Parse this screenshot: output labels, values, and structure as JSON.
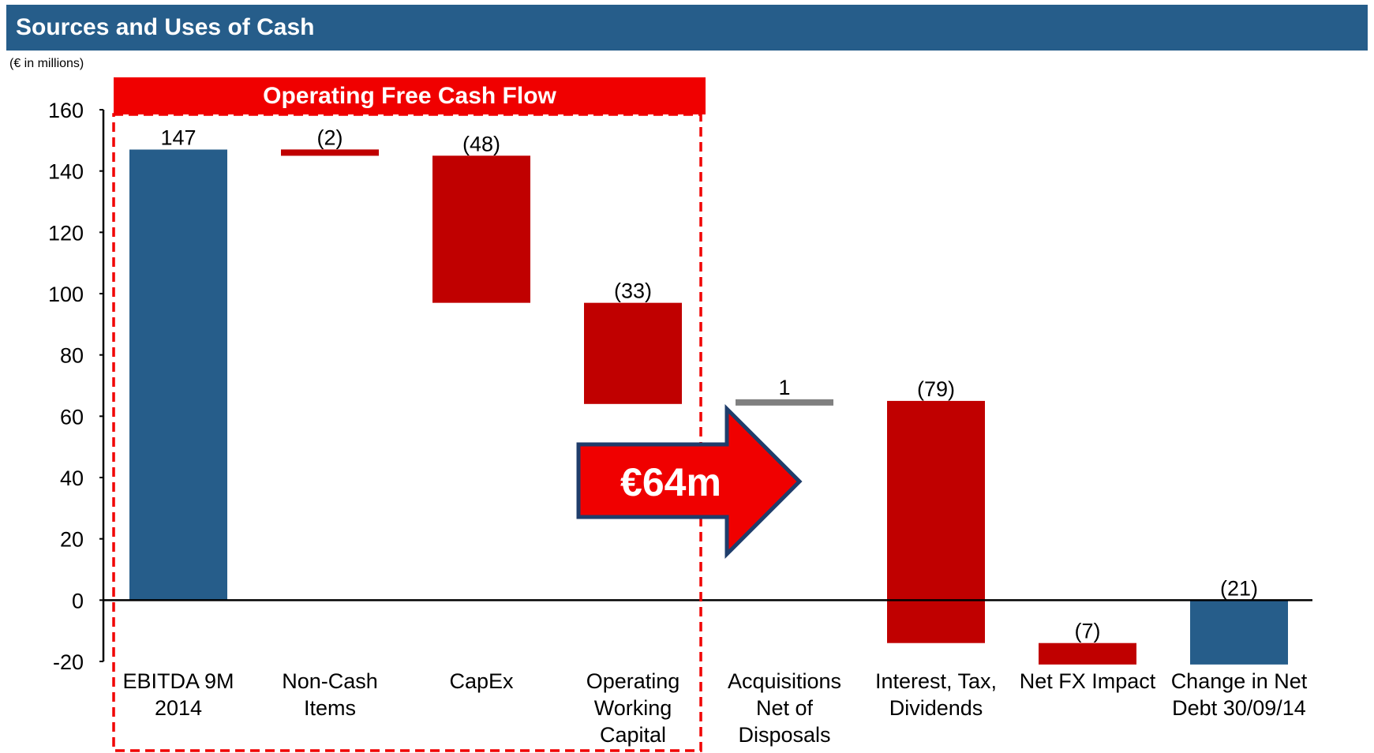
{
  "chart_data": {
    "type": "waterfall",
    "title": "Sources and Uses of Cash",
    "subtitle": "(€ in millions)",
    "categories": [
      "EBITDA 9M 2014",
      "Non-Cash Items",
      "CapEx",
      "Operating Working Capital",
      "Acquisitions Net of Disposals",
      "Interest, Tax, Dividends",
      "Net FX Impact",
      "Change in Net Debt 30/09/14"
    ],
    "values": [
      147,
      -2,
      -48,
      -33,
      1,
      -79,
      -7,
      -21
    ],
    "value_labels": [
      "147",
      "(2)",
      "(48)",
      "(33)",
      "1",
      "(79)",
      "(7)",
      "(21)"
    ],
    "colors": [
      "#265d8a",
      "#c00000",
      "#c00000",
      "#c00000",
      "#808080",
      "#c00000",
      "#c00000",
      "#265d8a"
    ],
    "ylim": [
      -20,
      160
    ],
    "yticks": [
      -20,
      0,
      20,
      40,
      60,
      80,
      100,
      120,
      140,
      160
    ],
    "annotations": [
      "Operating Free Cash Flow",
      "€64m"
    ]
  }
}
